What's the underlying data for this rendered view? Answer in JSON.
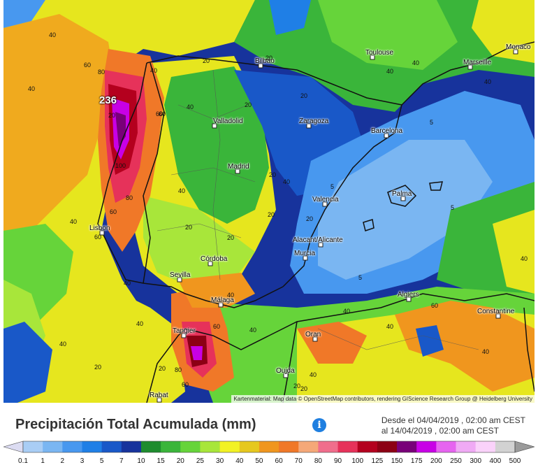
{
  "title": "Precipitación Total Acumulada (mm)",
  "date_range": {
    "from": "Desde el 04/04/2019 , 02:00 am CEST",
    "to": "al 14/04/2019 , 02:00 am CEST"
  },
  "max_value_label": "236",
  "attribution": "Kartenmaterial: Map data © OpenStreetMap contributors, rendering GIScience Research Group @ Heidelberg University",
  "info_icon": "info-icon",
  "cities": [
    {
      "name": "Bilbao"
    },
    {
      "name": "Toulouse"
    },
    {
      "name": "Marseille"
    },
    {
      "name": "Monaco"
    },
    {
      "name": "Valladolid"
    },
    {
      "name": "Zaragoza"
    },
    {
      "name": "Barcelona"
    },
    {
      "name": "Madrid"
    },
    {
      "name": "Valencia"
    },
    {
      "name": "Palma"
    },
    {
      "name": "Lisbon"
    },
    {
      "name": "Alacant/Alicante"
    },
    {
      "name": "Murcia"
    },
    {
      "name": "Córdoba"
    },
    {
      "name": "Sevilla"
    },
    {
      "name": "Málaga"
    },
    {
      "name": "Algiers"
    },
    {
      "name": "Constantine"
    },
    {
      "name": "Tangier"
    },
    {
      "name": "Oran"
    },
    {
      "name": "Oujda"
    },
    {
      "name": "Rabat"
    }
  ],
  "contour_labels": [
    "40",
    "60",
    "40",
    "60",
    "20",
    "20",
    "20",
    "20",
    "40",
    "40",
    "60",
    "80",
    "100",
    "80",
    "60",
    "40",
    "40",
    "40",
    "40",
    "20",
    "20",
    "5",
    "5",
    "5",
    "5",
    "40",
    "40",
    "40",
    "40",
    "20",
    "20",
    "20",
    "40",
    "60",
    "60",
    "40",
    "40",
    "40",
    "40",
    "40",
    "60",
    "20",
    "20",
    "40",
    "40",
    "20",
    "20",
    "20",
    "80",
    "60"
  ],
  "legend": {
    "values": [
      "0.1",
      "1",
      "2",
      "3",
      "5",
      "7",
      "10",
      "15",
      "20",
      "25",
      "30",
      "40",
      "50",
      "60",
      "70",
      "80",
      "90",
      "100",
      "125",
      "150",
      "175",
      "200",
      "250",
      "300",
      "400",
      "500"
    ],
    "colors": [
      "#dcdcf2",
      "#a9cdf5",
      "#7ab6f2",
      "#4898ef",
      "#1f7fe6",
      "#1958c8",
      "#17339c",
      "#1e8c2e",
      "#3ab53a",
      "#66d43a",
      "#a8e63a",
      "#f2f224",
      "#e6c81e",
      "#f0961e",
      "#f07828",
      "#f5a878",
      "#f06e8c",
      "#e6325a",
      "#b4001e",
      "#8c0014",
      "#780078",
      "#c800e6",
      "#e664f0",
      "#f0aaf5",
      "#fad2fa",
      "#d2d2d2",
      "#9b9b9b"
    ]
  }
}
